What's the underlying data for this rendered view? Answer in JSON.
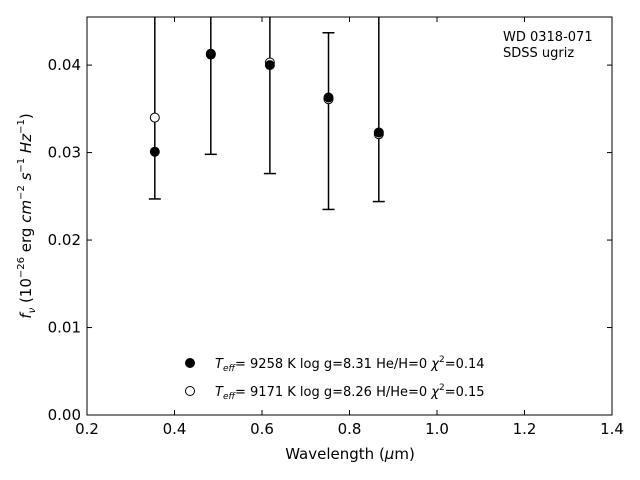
{
  "chart_data": {
    "type": "scatter",
    "xlabel": "Wavelength (μm)",
    "xlabel_parts": {
      "pre": "Wavelength (",
      "mu": "μ",
      "post": "m)"
    },
    "ylabel": "f_ν (10^-26 erg cm^-2 s^-1 Hz^-1)",
    "ylabel_parts": {
      "f": "f",
      "nu": "ν",
      "open": " (10",
      "exp26": "−26",
      "erg": " erg ",
      "cm": "cm",
      "exp2": "−2",
      "s": " s",
      "exp1a": "−1",
      "hz": " Hz",
      "exp1b": "−1",
      "close": ")"
    },
    "xlim": [
      0.2,
      1.4
    ],
    "ylim": [
      0.0,
      0.0455
    ],
    "xticks": [
      0.2,
      0.4,
      0.6,
      0.8,
      1.0,
      1.2,
      1.4
    ],
    "xtick_labels": [
      "0.2",
      "0.4",
      "0.6",
      "0.8",
      "1.0",
      "1.2",
      "1.4"
    ],
    "yticks": [
      0.0,
      0.01,
      0.02,
      0.03,
      0.04
    ],
    "ytick_labels": [
      "0.00",
      "0.01",
      "0.02",
      "0.03",
      "0.04"
    ],
    "annotation": [
      "WD 0318-071",
      "SDSS ugriz"
    ],
    "observed": {
      "x": [
        0.355,
        0.483,
        0.618,
        0.752,
        0.867
      ],
      "y_low": [
        0.0247,
        0.0298,
        0.0276,
        0.0235,
        0.0244
      ],
      "y_high": [
        0.0455,
        0.0455,
        0.0455,
        0.0437,
        0.0455
      ],
      "cap_low": [
        true,
        true,
        true,
        true,
        true
      ],
      "cap_high": [
        false,
        false,
        false,
        true,
        false
      ]
    },
    "series": [
      {
        "marker": "filled",
        "label": {
          "teff_sym": "T",
          "teff_sub": "eff",
          "teff_value": "=  9258 K  log g=8.31  He/H=0  ",
          "chi_sym": "χ",
          "chi_sup": "2",
          "chi_value": "=0.14"
        },
        "x": [
          0.355,
          0.483,
          0.618,
          0.752,
          0.867
        ],
        "y": [
          0.0301,
          0.0413,
          0.04,
          0.0363,
          0.0323
        ]
      },
      {
        "marker": "open",
        "label": {
          "teff_sym": "T",
          "teff_sub": "eff",
          "teff_value": "=  9171 K  log g=8.26  H/He=0  ",
          "chi_sym": "χ",
          "chi_sup": "2",
          "chi_value": "=0.15"
        },
        "x": [
          0.355,
          0.483,
          0.618,
          0.752,
          0.867
        ],
        "y": [
          0.034,
          0.0412,
          0.0403,
          0.0361,
          0.0321
        ]
      }
    ]
  }
}
